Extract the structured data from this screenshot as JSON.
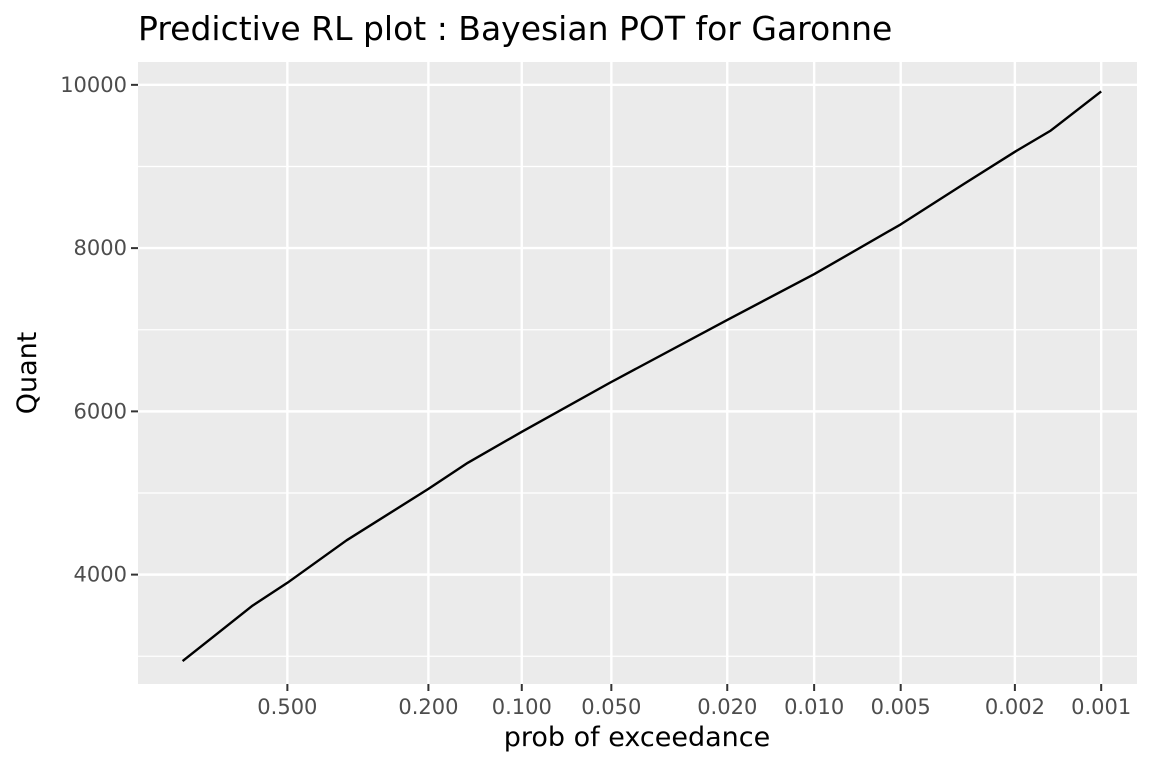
{
  "chart_data": {
    "type": "line",
    "title": "Predictive RL plot : Bayesian POT for Garonne",
    "xlabel": "prob of exceedance",
    "ylabel": "Quant",
    "x_scale": "gumbel-reduced (decreasing probability to the right)",
    "xlim_prob": [
      0.9,
      0.00075
    ],
    "ylim": [
      2660,
      10280
    ],
    "x_ticks": [
      0.5,
      0.2,
      0.1,
      0.05,
      0.02,
      0.01,
      0.005,
      0.002,
      0.001
    ],
    "x_tick_labels": [
      "0.500",
      "0.200",
      "0.100",
      "0.050",
      "0.020",
      "0.010",
      "0.005",
      "0.002",
      "0.001"
    ],
    "y_ticks": [
      4000,
      6000,
      8000,
      10000
    ],
    "y_tick_labels": [
      "4000",
      "6000",
      "8000",
      "10000"
    ],
    "grid": true,
    "background": "#ebebeb",
    "grid_color": "#ffffff",
    "line_color": "#000000",
    "series": [
      {
        "x": [
          0.8,
          0.6,
          0.5,
          0.35,
          0.2,
          0.15,
          0.1,
          0.05,
          0.02,
          0.01,
          0.005,
          0.003,
          0.002,
          0.0015,
          0.001
        ],
        "y": [
          2940,
          3620,
          3900,
          4420,
          5050,
          5370,
          5750,
          6360,
          7120,
          7680,
          8290,
          8790,
          9180,
          9440,
          9920
        ]
      }
    ]
  }
}
